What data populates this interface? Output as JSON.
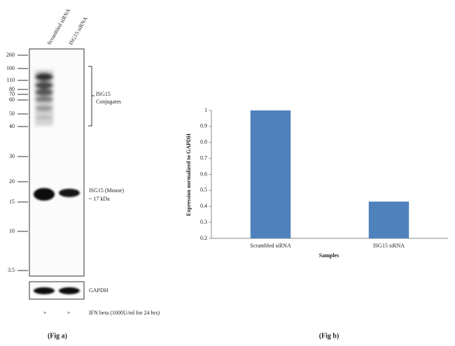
{
  "blot": {
    "lanes": [
      "Scrambled siRNA",
      "ISG15 siRNA"
    ],
    "markers": [
      260,
      160,
      110,
      80,
      70,
      60,
      50,
      40,
      30,
      20,
      15,
      10,
      3.5
    ],
    "conjugates_label": [
      "ISG15",
      "Conjugates"
    ],
    "band_label": [
      "ISG15 (Mouse)",
      "~ 17 kDa"
    ],
    "loading_label": "GAPDH",
    "treatment": [
      "+",
      "+"
    ],
    "treatment_label": "IFN beta (1000U/ml for 24 hrs)",
    "caption": "(Fig a)"
  },
  "chart_data": {
    "type": "bar",
    "categories": [
      "Scrambled siRNA",
      "ISG15 siRNA"
    ],
    "values": [
      1,
      0.43
    ],
    "color": "#4f81bd",
    "ylim": [
      0.2,
      1
    ],
    "yticks": [
      0.2,
      0.3,
      0.4,
      0.5,
      0.6,
      0.7,
      0.8,
      0.9,
      1
    ],
    "x_label": "Samples",
    "y_label": "Expression normalized to GAPDH",
    "caption": "(Fig b)"
  }
}
